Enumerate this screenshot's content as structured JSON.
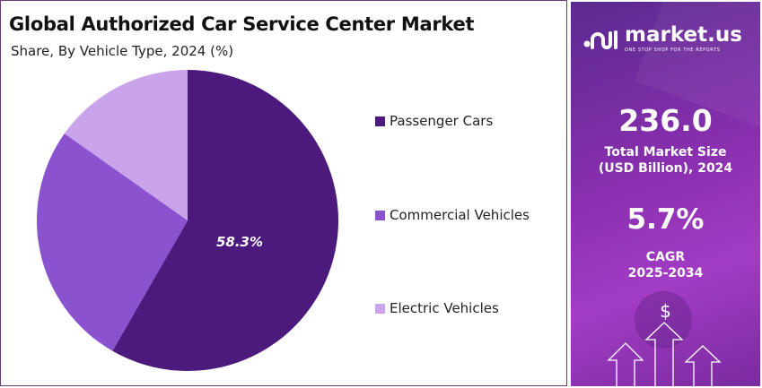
{
  "chart_data": {
    "type": "pie",
    "title": "Global Authorized Car Service Center Market",
    "subtitle": "Share, By Vehicle Type, 2024 (%)",
    "categories": [
      "Passenger Cars",
      "Commercial Vehicles",
      "Electric Vehicles"
    ],
    "values": [
      58.3,
      26.5,
      15.2
    ],
    "data_labels": [
      "58.3%",
      "",
      ""
    ],
    "colors": [
      "#4b1a7c",
      "#8a52cf",
      "#caa4ea"
    ],
    "legend_position": "right"
  },
  "sidebar": {
    "brand": "market.us",
    "tagline": "ONE STOP SHOP FOR THE REPORTS",
    "market_size": "236.0",
    "market_size_label_1": "Total Market Size",
    "market_size_label_2": "(USD Billion), 2024",
    "cagr": "5.7%",
    "cagr_label_1": "CAGR",
    "cagr_label_2": "2025-2034",
    "dollar": "$"
  }
}
